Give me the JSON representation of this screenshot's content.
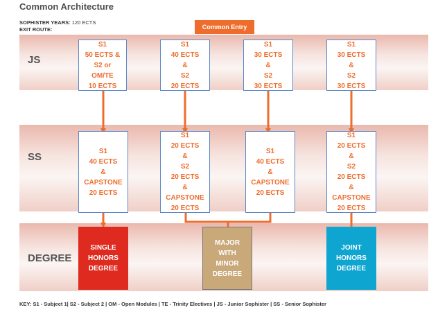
{
  "title": "Common Architecture",
  "sophister_years": {
    "label": "SOPHISTER YEARS:",
    "value": "120 ECTS"
  },
  "exit_route": {
    "label": "EXIT ROUTE:"
  },
  "common_entry": "Common Entry",
  "rows": {
    "js": "JS",
    "ss": "SS",
    "degree": "DEGREE"
  },
  "js_boxes": [
    [
      "S1",
      "50 ECTS &",
      "S2 or",
      "OM/TE",
      "10 ECTS"
    ],
    [
      "S1",
      "40 ECTS",
      "&",
      "S2",
      "20 ECTS"
    ],
    [
      "S1",
      "30 ECTS",
      "&",
      "S2",
      "30 ECTS"
    ],
    [
      "S1",
      "30 ECTS",
      "&",
      "S2",
      "30 ECTS"
    ]
  ],
  "ss_boxes": [
    [
      "S1",
      "40 ECTS",
      "&",
      "CAPSTONE",
      "20 ECTS"
    ],
    [
      "S1",
      "20 ECTS",
      "&",
      "S2",
      "20 ECTS",
      "&",
      "CAPSTONE",
      "20 ECTS"
    ],
    [
      "S1",
      "40 ECTS",
      "&",
      "CAPSTONE",
      "20 ECTS"
    ],
    [
      "S1",
      "20 ECTS",
      "&",
      "S2",
      "20 ECTS",
      "&",
      "CAPSTONE",
      "20 ECTS"
    ]
  ],
  "degrees": [
    {
      "lines": [
        "SINGLE",
        "HONORS",
        "DEGREE"
      ],
      "color": "#df2a1f"
    },
    {
      "lines": [
        "MAJOR",
        "WITH",
        "MINOR",
        "DEGREE"
      ],
      "color": "#c9a87a"
    },
    {
      "lines": [
        "JOINT",
        "HONORS",
        "DEGREE"
      ],
      "color": "#0ea5d1"
    }
  ],
  "arrow_color": "#ee6d2d",
  "key": "KEY: S1 - Subject 1| S2 - Subject 2 | OM - Open Modules | TE - Trinity Electives | JS - Junior Sophister | SS - Senior Sophister"
}
